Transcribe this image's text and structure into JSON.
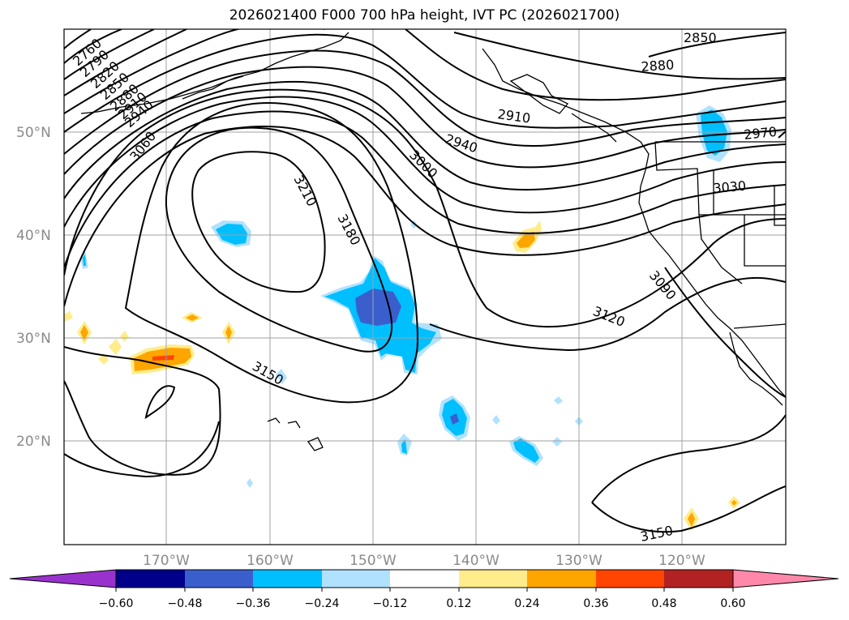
{
  "title": "2026021400 F000 700 hPa height, IVT PC (2026021700)",
  "colors": {
    "grid": "#a0a0a0",
    "contour": "#000000",
    "coast": "#000000",
    "label_gray": "#8a8a8a"
  },
  "map": {
    "lat_labels": [
      "50°N",
      "40°N",
      "30°N",
      "20°N"
    ],
    "lon_labels": [
      "170°W",
      "160°W",
      "150°W",
      "140°W",
      "130°W",
      "120°W"
    ],
    "height_contour_labels": [
      "2760",
      "2790",
      "2820",
      "2850",
      "2880",
      "2910",
      "2940",
      "3060",
      "3210",
      "3180",
      "2940",
      "3000",
      "2910",
      "2880",
      "2850",
      "2970",
      "3030",
      "3090",
      "3120",
      "3150",
      "3150"
    ],
    "negative_anomaly_color": "#00bfff",
    "positive_anomaly_color": "#ffa500"
  },
  "colorbar": {
    "ticks": [
      "−0.60",
      "−0.48",
      "−0.36",
      "−0.24",
      "−0.12",
      "0.12",
      "0.24",
      "0.36",
      "0.48",
      "0.60"
    ],
    "bins": [
      "#9932cc",
      "#00008b",
      "#3a5fcd",
      "#00bfff",
      "#b0e2ff",
      "#ffffff",
      "#ffec8b",
      "#ffa500",
      "#ff4500",
      "#b22222",
      "#ff88aa"
    ]
  }
}
